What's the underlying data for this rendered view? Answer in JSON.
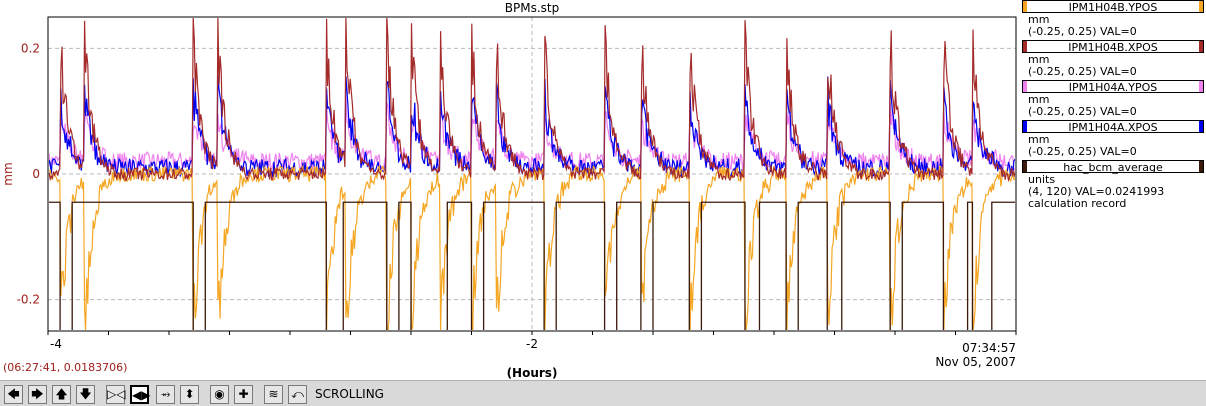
{
  "chart_data": {
    "type": "line",
    "title": "BPMs.stp",
    "ylabel": "mm",
    "xlabel": "(Hours)",
    "ylim": [
      -0.25,
      0.25
    ],
    "xlim": [
      -4,
      0
    ],
    "y_ticks": [
      "0.2",
      "0",
      "-0.2"
    ],
    "y_tick_values": [
      0.2,
      0,
      -0.2
    ],
    "x_ticks": [
      "-4",
      "-2"
    ],
    "x_tick_values": [
      -4,
      -2
    ],
    "x_end_label_time": "07:34:57",
    "x_end_label_date": "Nov 05, 2007",
    "grid": true,
    "legend_position": "right",
    "series": [
      {
        "name": "IPM1H04B.YPOS",
        "color": "#f5a623"
      },
      {
        "name": "IPM1H04B.XPOS",
        "color": "#a52a2a"
      },
      {
        "name": "IPM1H04A.YPOS",
        "color": "#ee82ee"
      },
      {
        "name": "IPM1H04A.XPOS",
        "color": "#0000ee"
      },
      {
        "name": "hac_bcm_average",
        "color": "#3a1a0a"
      }
    ]
  },
  "legend": [
    {
      "name": "IPM1H04B.YPOS",
      "color": "#f5a623",
      "lines": [
        "mm",
        "(-0.25, 0.25) VAL=0"
      ]
    },
    {
      "name": "IPM1H04B.XPOS",
      "color": "#a52a2a",
      "lines": [
        "mm",
        "(-0.25, 0.25) VAL=0"
      ]
    },
    {
      "name": "IPM1H04A.YPOS",
      "color": "#ee82ee",
      "lines": [
        "mm",
        "(-0.25, 0.25) VAL=0"
      ]
    },
    {
      "name": "IPM1H04A.XPOS",
      "color": "#0000ee",
      "lines": [
        "mm",
        "(-0.25, 0.25) VAL=0"
      ]
    },
    {
      "name": "hac_bcm_average",
      "color": "#3a1a0a",
      "lines": [
        "units",
        "(4, 120) VAL=0.0241993",
        "calculation record"
      ]
    }
  ],
  "cursor_readout": "(06:27:41, 0.0183706)",
  "toolbar": {
    "mode_label": "SCROLLING",
    "icons": [
      "arrow-left-icon",
      "arrow-right-icon",
      "arrow-up-icon",
      "arrow-down-icon",
      "zoom-in-horizontal-icon",
      "zoom-out-horizontal-icon",
      "zoom-in-vertical-icon",
      "zoom-out-vertical-icon",
      "auto-scale-icon",
      "add-icon",
      "stack-icon",
      "scroll-back-icon"
    ]
  }
}
